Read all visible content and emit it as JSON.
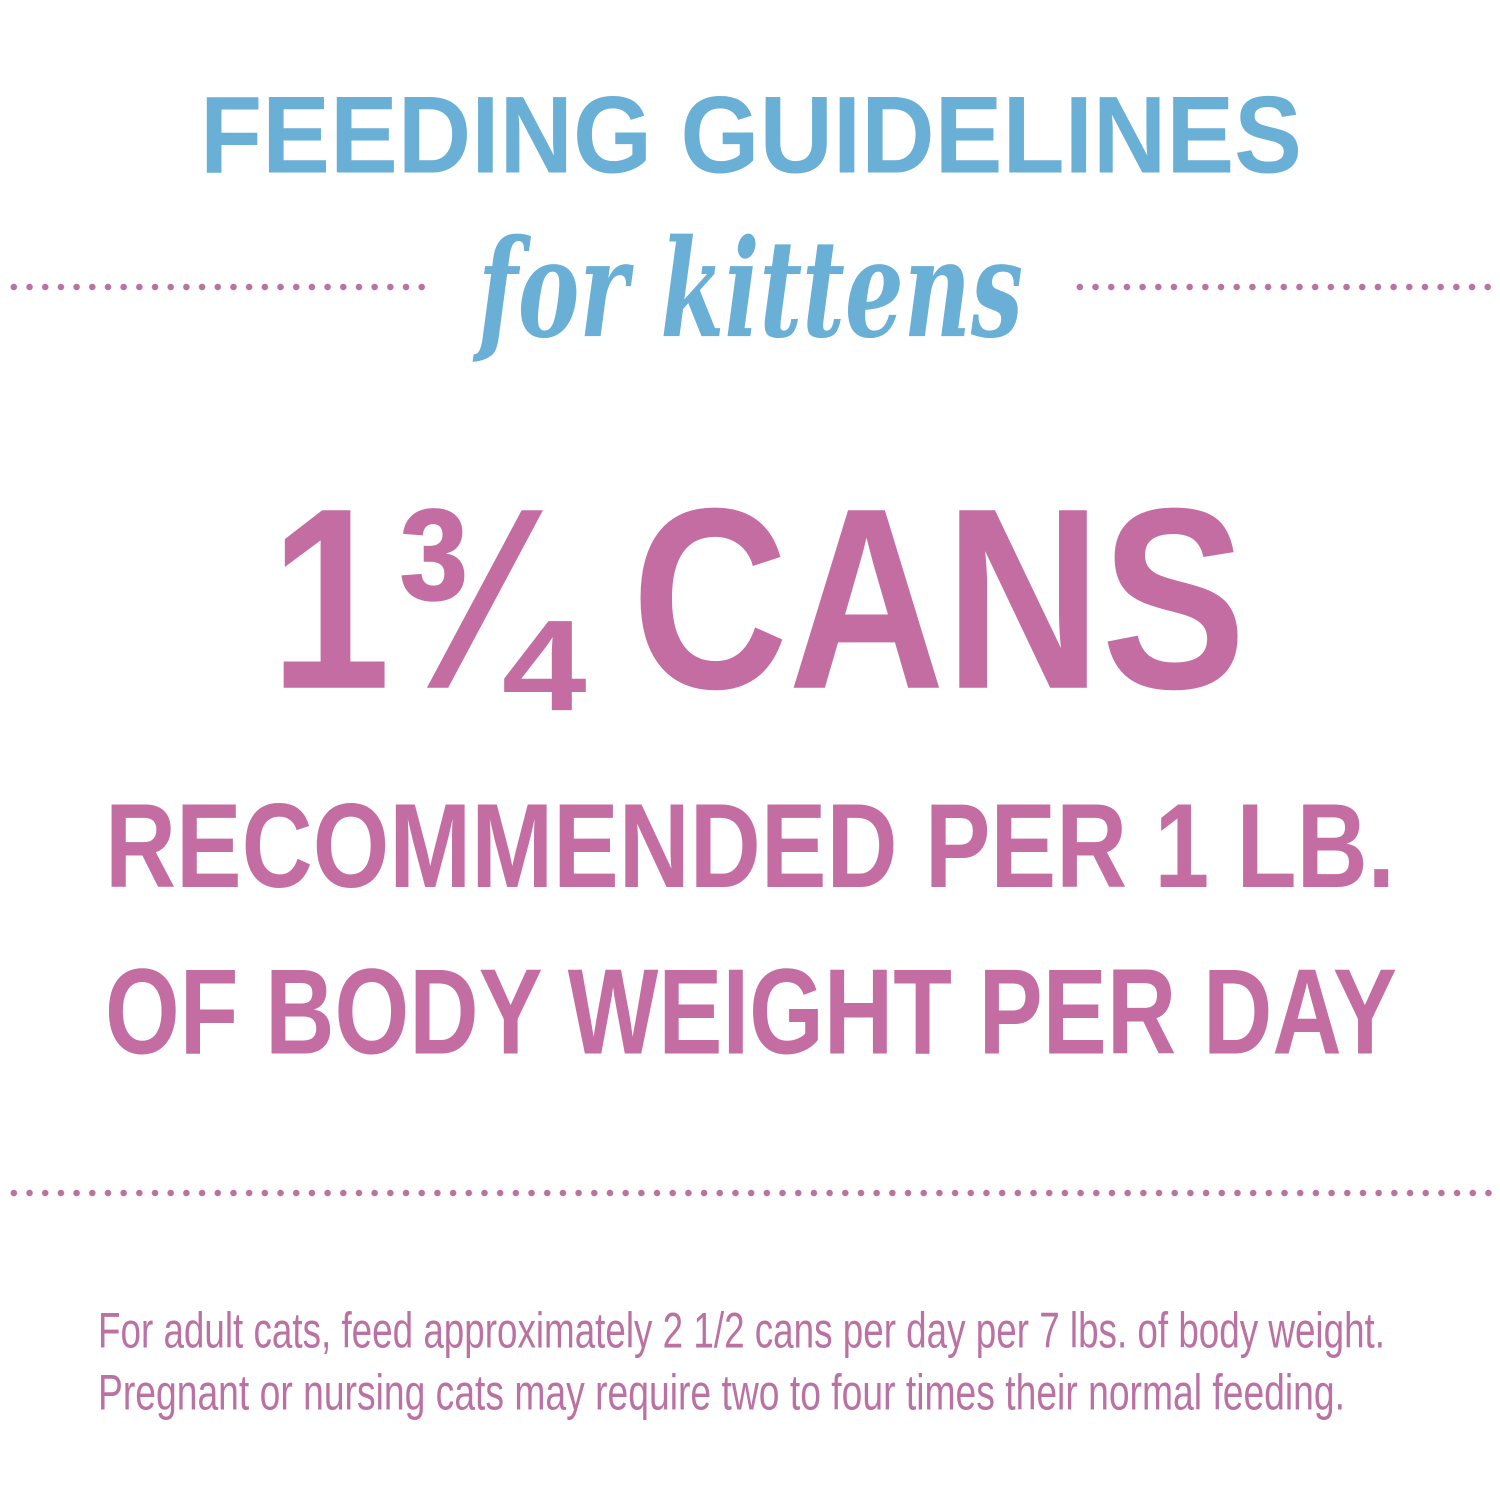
{
  "header": {
    "title": "FEEDING GUIDELINES",
    "subtitle": "for kittens"
  },
  "main": {
    "amount": "1¾ CANS",
    "line1": "RECOMMENDED PER 1 LB.",
    "line2": "OF BODY WEIGHT PER DAY"
  },
  "footer": {
    "line1": "For adult cats, feed approximately 2 1/2 cans per day per 7 lbs. of body weight.",
    "line2": "Pregnant or nursing cats may require two to four times their normal feeding."
  },
  "colors": {
    "blue": "#69afd6",
    "pink": "#c46da3",
    "dots": "#b8739f"
  }
}
